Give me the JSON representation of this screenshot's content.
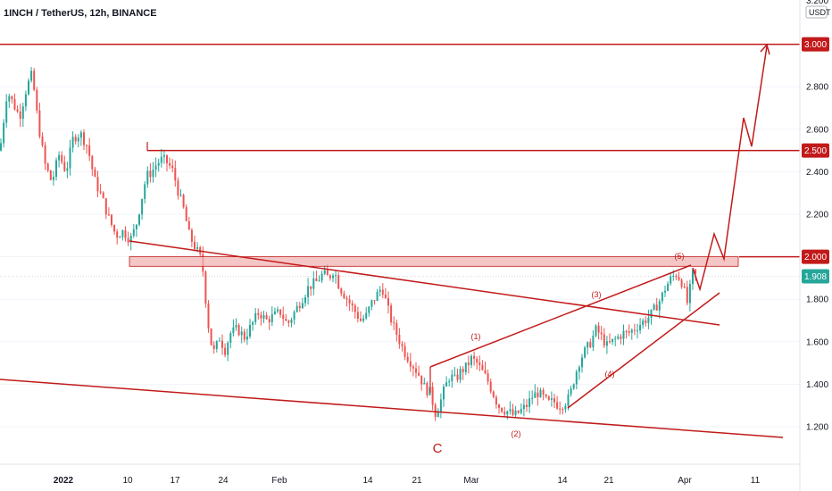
{
  "header": {
    "title": "1INCH / TetherUS, 12h, BINANCE"
  },
  "chart_data": {
    "type": "candlestick",
    "ylim": [
      1.1,
      3.2
    ],
    "y_ticks": [
      {
        "value": 1.2,
        "label": "1.200"
      },
      {
        "value": 1.4,
        "label": "1.400"
      },
      {
        "value": 1.6,
        "label": "1.600"
      },
      {
        "value": 1.8,
        "label": "1.800"
      },
      {
        "value": 2.2,
        "label": "2.200"
      },
      {
        "value": 2.4,
        "label": "2.400"
      },
      {
        "value": 2.6,
        "label": "2.600"
      },
      {
        "value": 2.8,
        "label": "2.800"
      }
    ],
    "top_partial_label": "3.200",
    "unit_label": "USDT",
    "x_ticks": [
      {
        "label": "2022",
        "bold": true
      },
      {
        "label": "10"
      },
      {
        "label": "17"
      },
      {
        "label": "24"
      },
      {
        "label": "Feb"
      },
      {
        "label": "14"
      },
      {
        "label": "21"
      },
      {
        "label": "Mar"
      },
      {
        "label": "14"
      },
      {
        "label": "21"
      },
      {
        "label": "Apr"
      },
      {
        "label": "11"
      }
    ],
    "price_tags": [
      {
        "value": 3.0,
        "label": "3.000",
        "color": "#c21a1a"
      },
      {
        "value": 2.5,
        "label": "2.500",
        "color": "#c21a1a"
      },
      {
        "value": 2.0,
        "label": "2.000",
        "color": "#c21a1a"
      },
      {
        "value": 1.908,
        "label": "1.908",
        "color": "#26a69a"
      }
    ],
    "current_price": 1.908,
    "annotations": {
      "wave_labels": [
        "(1)",
        "(2)",
        "(3)",
        "(4)",
        "(5)"
      ],
      "corrective_label": "C"
    },
    "colors": {
      "up": "#26a69a",
      "down": "#ef5350",
      "drawing": "#c21a1a",
      "zone_fill": "#f0b3b3"
    }
  }
}
